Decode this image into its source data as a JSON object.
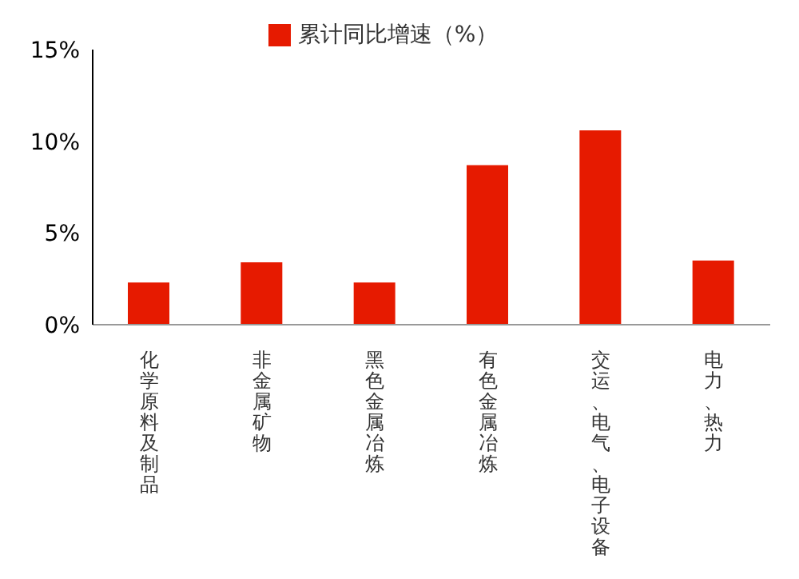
{
  "chart_data": {
    "type": "bar",
    "categories": [
      "化学原料及制品",
      "非金属矿物",
      "黑色金属冶炼",
      "有色金属冶炼",
      "交运、电气、电子设备",
      "电力、热力"
    ],
    "series": [
      {
        "name": "累计同比增速（%）",
        "color": "#e61a00",
        "values": [
          2.3,
          3.4,
          2.3,
          8.7,
          10.6,
          3.5
        ]
      }
    ],
    "ylim": [
      0,
      15
    ],
    "yticks": [
      {
        "value": 0,
        "label": "0%"
      },
      {
        "value": 5,
        "label": "5%"
      },
      {
        "value": 10,
        "label": "10%"
      },
      {
        "value": 15,
        "label": "15%"
      }
    ],
    "legend": "top",
    "grid": false
  }
}
